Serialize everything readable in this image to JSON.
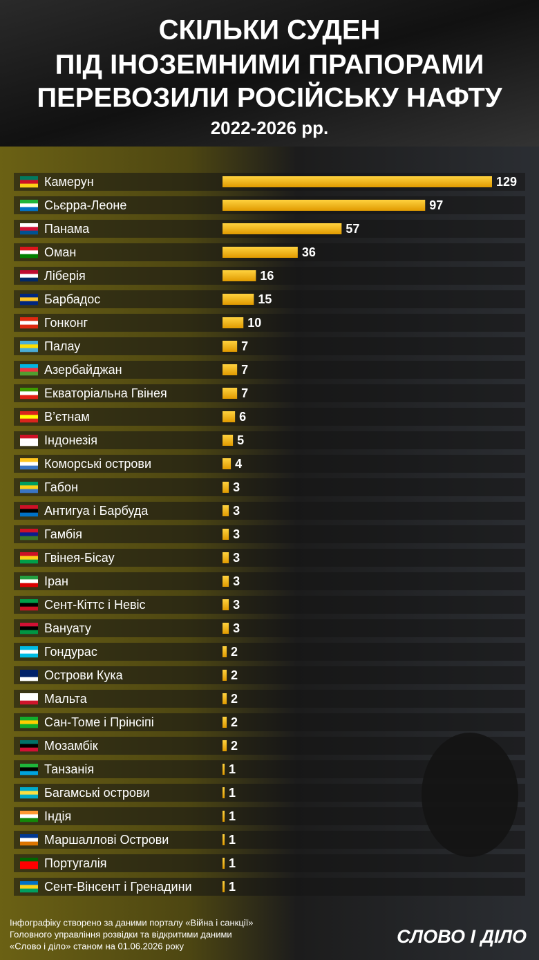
{
  "chart_data": {
    "type": "hbar",
    "title": [
      "СКІЛЬКИ СУДЕН",
      "ПІД ІНОЗЕМНИМИ ПРАПОРАМИ",
      "ПЕРЕВОЗИЛИ РОСІЙСЬКУ НАФТУ"
    ],
    "subtitle": "2022-2026 рр.",
    "categories": [
      "Камерун",
      "Сьєрра-Леоне",
      "Панама",
      "Оман",
      "Ліберія",
      "Барбадос",
      "Гонконг",
      "Палау",
      "Азербайджан",
      "Екваторіальна Гвінея",
      "В’єтнам",
      "Індонезія",
      "Коморські острови",
      "Габон",
      "Антигуа і Барбуда",
      "Гамбія",
      "Гвінея-Бісау",
      "Іран",
      "Сент-Кіттс і Невіс",
      "Вануату",
      "Гондурас",
      "Острови Кука",
      "Мальта",
      "Сан-Томе і Прінсіпі",
      "Мозамбік",
      "Танзанія",
      "Багамські острови",
      "Індія",
      "Маршаллові Острови",
      "Португалія",
      "Сент-Вінсент і Гренадини"
    ],
    "values": [
      129,
      97,
      57,
      36,
      16,
      15,
      10,
      7,
      7,
      7,
      6,
      5,
      4,
      3,
      3,
      3,
      3,
      3,
      3,
      3,
      2,
      2,
      2,
      2,
      2,
      1,
      1,
      1,
      1,
      1,
      1
    ],
    "color": "#f2b400",
    "note": [
      "Інфографіку створено за даними порталу «Війна і санкції»",
      "Головного управління розвідки та відкритими даними",
      "«Слово і діло» станом на 01.06.2026 року"
    ],
    "logo": "СЛОВО І ДІЛО"
  }
}
